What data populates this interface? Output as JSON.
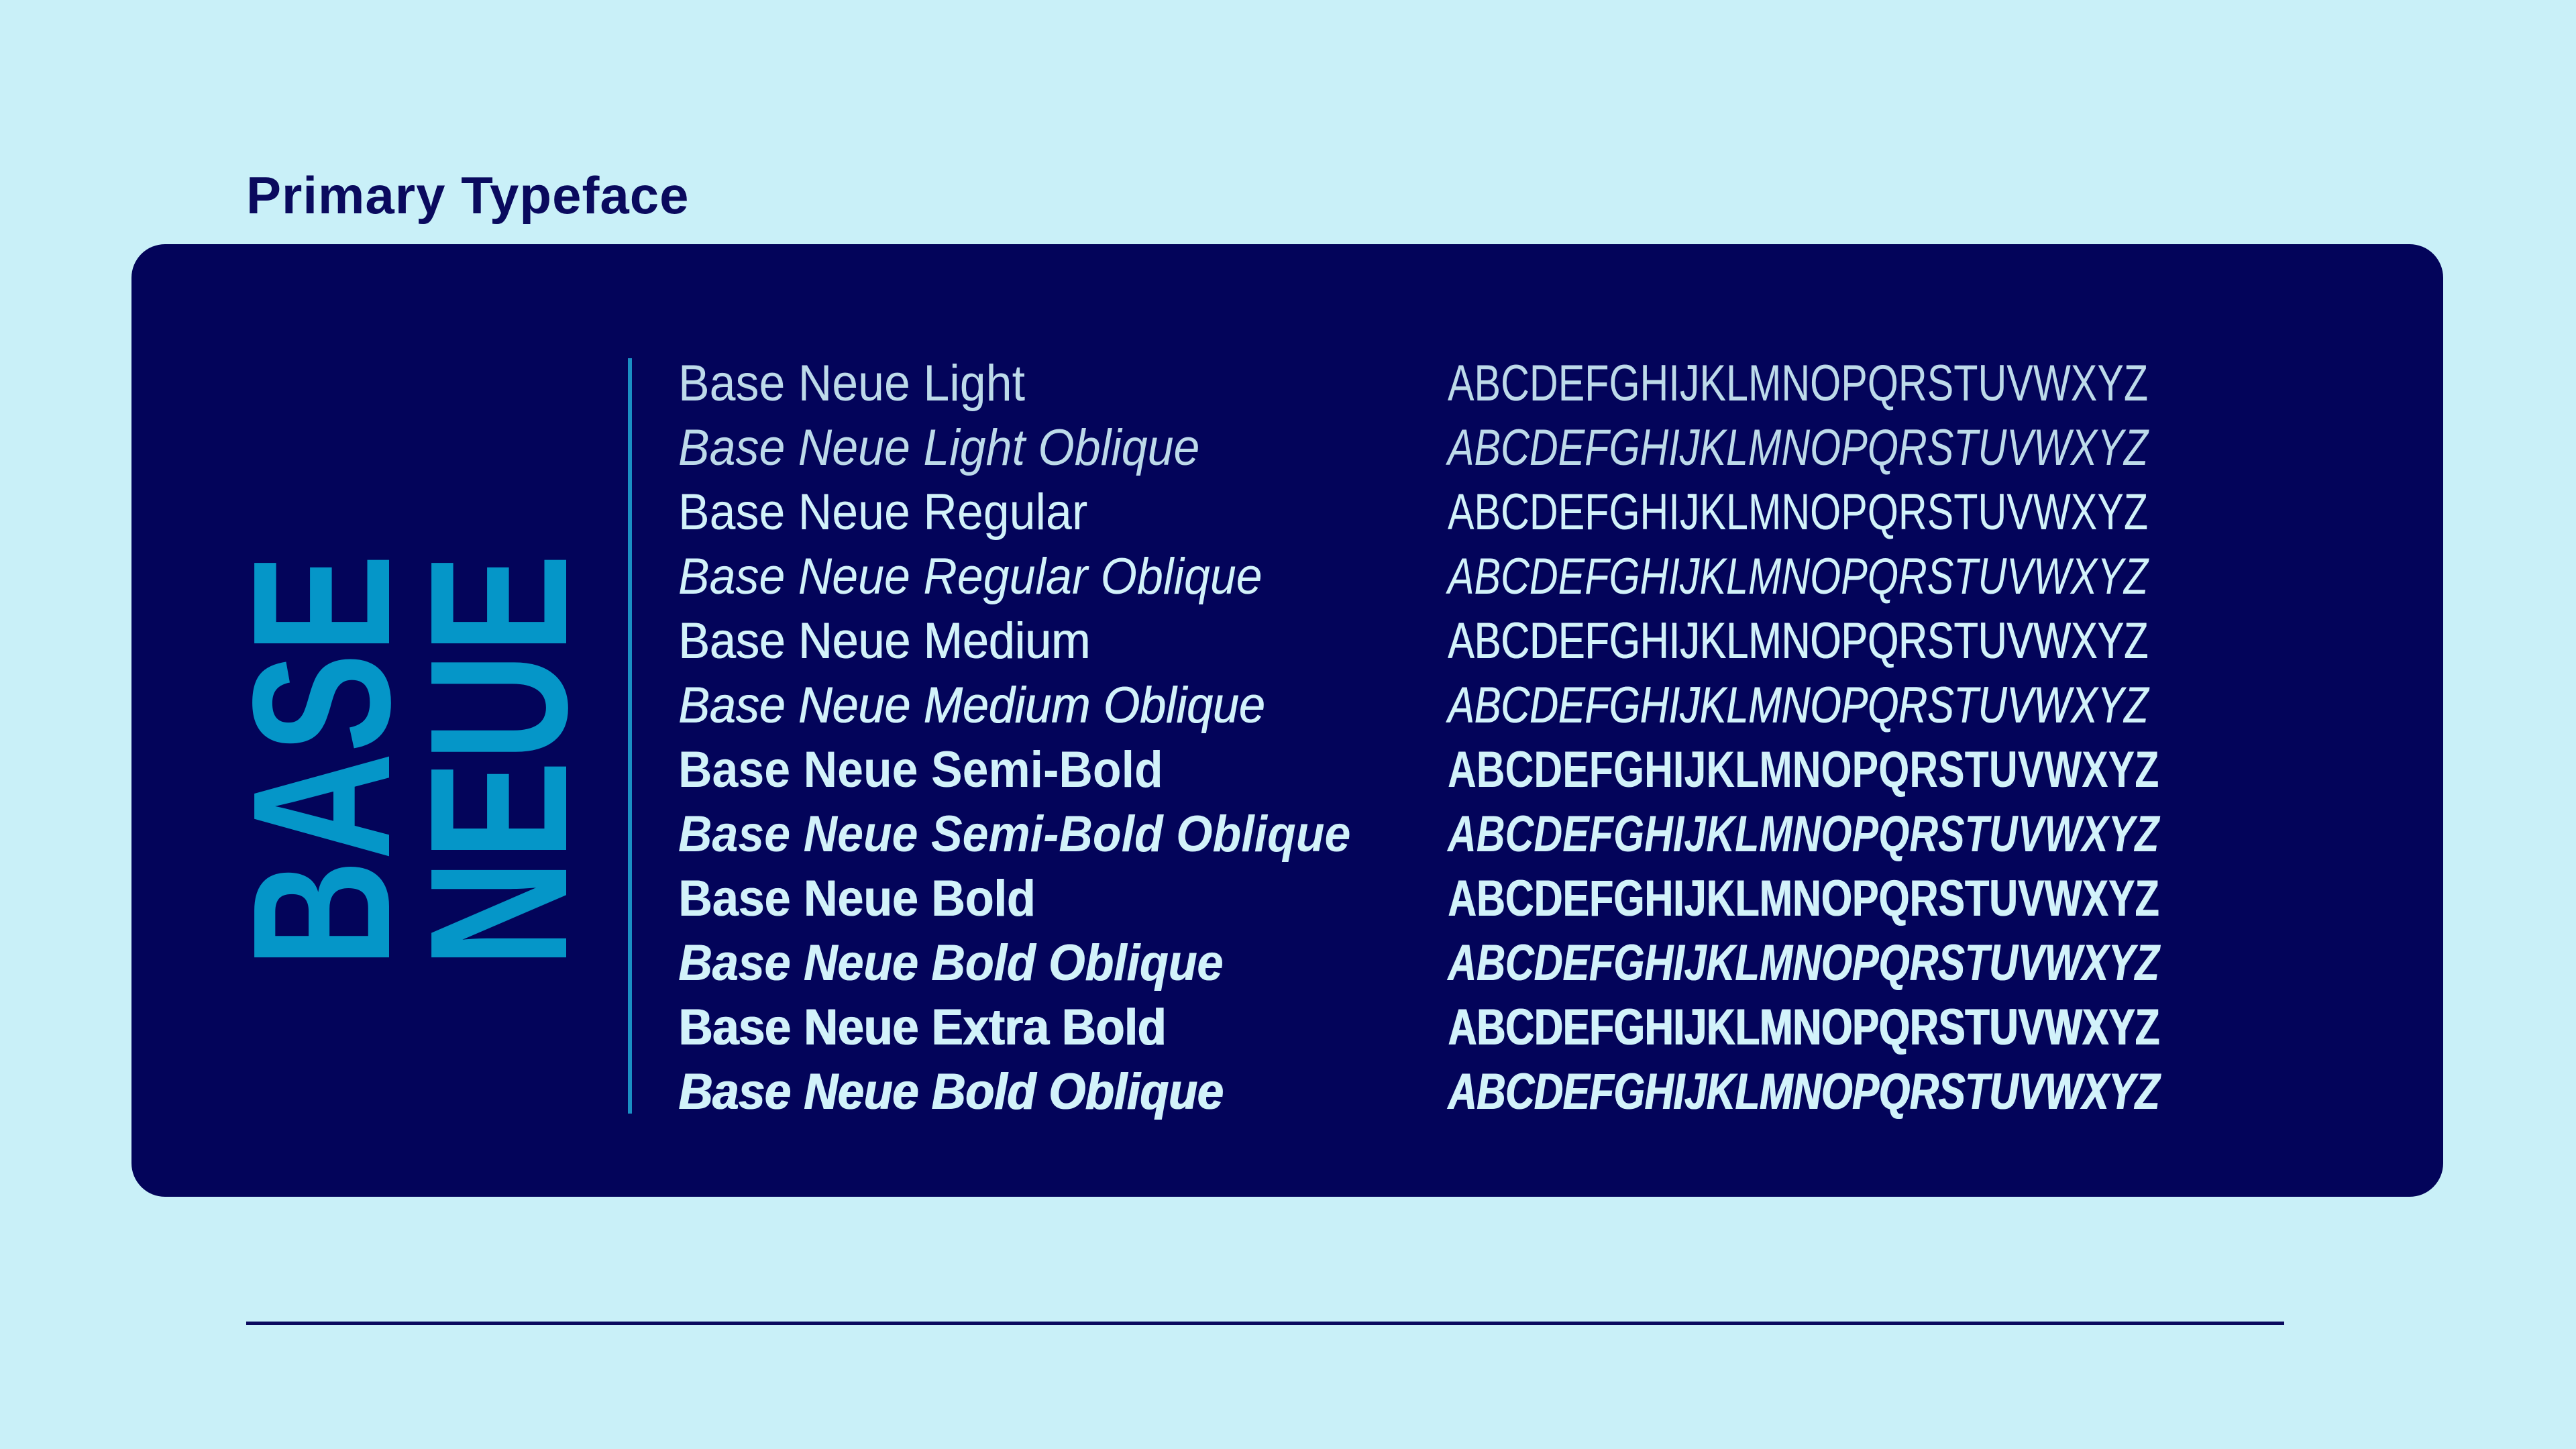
{
  "header": {
    "title": "Primary Typeface"
  },
  "logo": {
    "line1": "BASE",
    "line2": "NEUE",
    "color": "#0596c8"
  },
  "colors": {
    "background": "#c9f0f8",
    "panel": "#03045a",
    "text": "#d2f2fa",
    "accent": "#1a8fc4"
  },
  "specimens": [
    {
      "name": "Base Neue Light",
      "sample": "ABCDEFGHIJKLMNOPQRSTUVWXYZ"
    },
    {
      "name": "Base Neue Light Oblique",
      "sample": "ABCDEFGHIJKLMNOPQRSTUVWXYZ"
    },
    {
      "name": "Base Neue Regular",
      "sample": "ABCDEFGHIJKLMNOPQRSTUVWXYZ"
    },
    {
      "name": "Base Neue Regular Oblique",
      "sample": "ABCDEFGHIJKLMNOPQRSTUVWXYZ"
    },
    {
      "name": "Base Neue Medium",
      "sample": "ABCDEFGHIJKLMNOPQRSTUVWXYZ"
    },
    {
      "name": "Base Neue Medium Oblique",
      "sample": "ABCDEFGHIJKLMNOPQRSTUVWXYZ"
    },
    {
      "name": "Base Neue Semi-Bold",
      "sample": "ABCDEFGHIJKLMNOPQRSTUVWXYZ"
    },
    {
      "name": "Base Neue Semi-Bold Oblique",
      "sample": "ABCDEFGHIJKLMNOPQRSTUVWXYZ"
    },
    {
      "name": "Base Neue Bold",
      "sample": "ABCDEFGHIJKLMNOPQRSTUVWXYZ"
    },
    {
      "name": "Base Neue Bold Oblique",
      "sample": "ABCDEFGHIJKLMNOPQRSTUVWXYZ"
    },
    {
      "name": "Base Neue Extra Bold",
      "sample": "ABCDEFGHIJKLMNOPQRSTUVWXYZ"
    },
    {
      "name": "Base Neue Bold Oblique",
      "sample": "ABCDEFGHIJKLMNOPQRSTUVWXYZ"
    }
  ]
}
